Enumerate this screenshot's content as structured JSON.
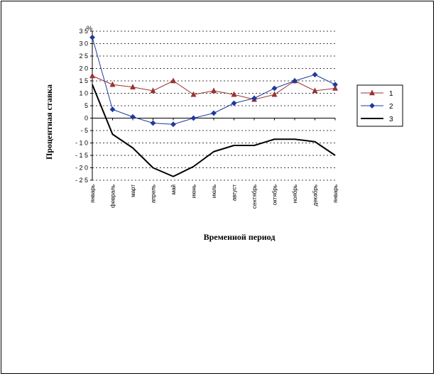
{
  "chart_data": {
    "type": "line",
    "ylabel": "Процентная ставка",
    "xlabel": "Временной период",
    "y_unit": "%",
    "ylim": [
      -25,
      35
    ],
    "yticks": [
      35,
      30,
      25,
      20,
      15,
      10,
      5,
      0,
      -5,
      -10,
      -15,
      -20,
      -25
    ],
    "grid": true,
    "legend_position": "right",
    "categories": [
      "январь",
      "февраль",
      "март",
      "апрель",
      "май",
      "июнь",
      "июль",
      "август",
      "сентябрь",
      "октябрь",
      "ноябрь",
      "декабрь",
      "январь"
    ],
    "series": [
      {
        "name": "1",
        "color": "#993333",
        "marker": "triangle",
        "values": [
          17,
          13.5,
          12.5,
          11,
          15,
          9.5,
          11,
          9.5,
          7.5,
          9.5,
          15,
          11,
          12
        ]
      },
      {
        "name": "2",
        "color": "#1f3b9c",
        "marker": "diamond",
        "values": [
          32.5,
          3.5,
          0.5,
          -2,
          -2.5,
          0,
          2,
          6,
          8,
          12,
          15,
          17.5,
          13.5
        ]
      },
      {
        "name": "3",
        "color": "#000000",
        "marker": "none",
        "values": [
          13.5,
          -6.5,
          -12,
          -20,
          -23.5,
          -19.5,
          -13.5,
          -11,
          -11,
          -8.5,
          -8.5,
          -9.5,
          -15
        ]
      }
    ]
  }
}
